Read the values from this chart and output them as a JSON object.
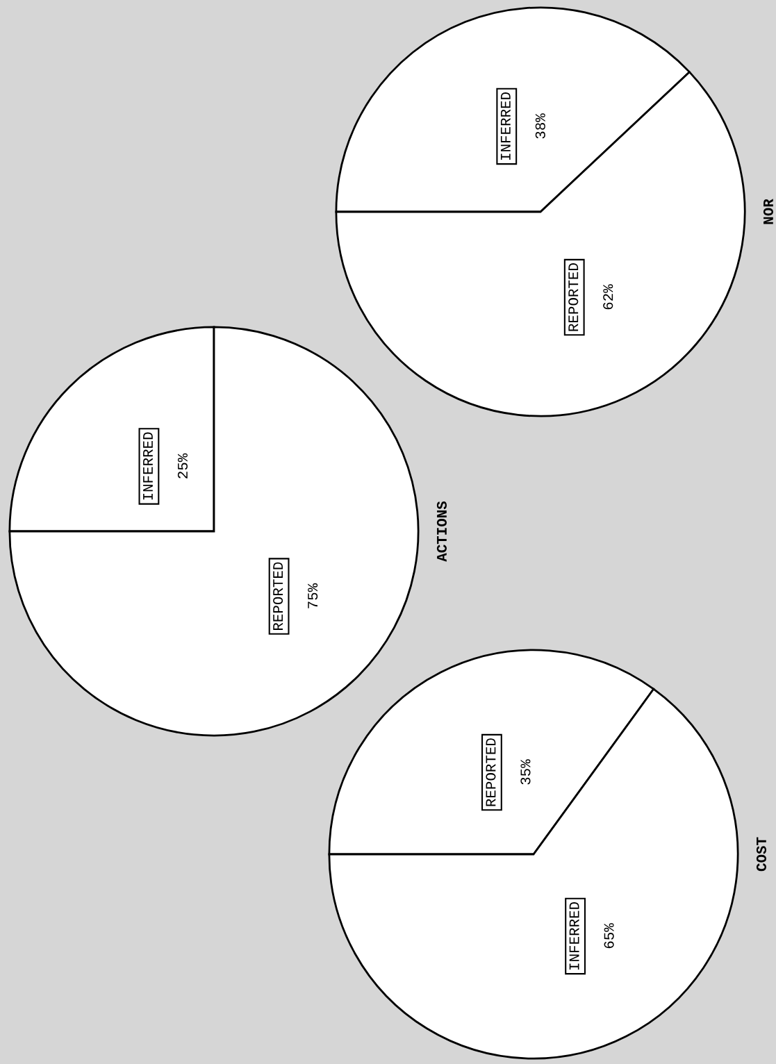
{
  "chart_data": [
    {
      "type": "pie",
      "title": "ACTIONS",
      "categories": [
        "INFERRED",
        "REPORTED"
      ],
      "values": [
        25,
        75
      ],
      "colors": [
        "#ffffff",
        "#ffffff"
      ],
      "value_labels": [
        "25%",
        "75%"
      ]
    },
    {
      "type": "pie",
      "title": "NOR",
      "categories": [
        "INFERRED",
        "REPORTED"
      ],
      "values": [
        38,
        62
      ],
      "colors": [
        "#ffffff",
        "#ffffff"
      ],
      "value_labels": [
        "38%",
        "62%"
      ]
    },
    {
      "type": "pie",
      "title": "COST",
      "categories": [
        "REPORTED",
        "INFERRED"
      ],
      "values": [
        35,
        65
      ],
      "colors": [
        "#ffffff",
        "#ffffff"
      ],
      "value_labels": [
        "35%",
        "65%"
      ]
    }
  ]
}
